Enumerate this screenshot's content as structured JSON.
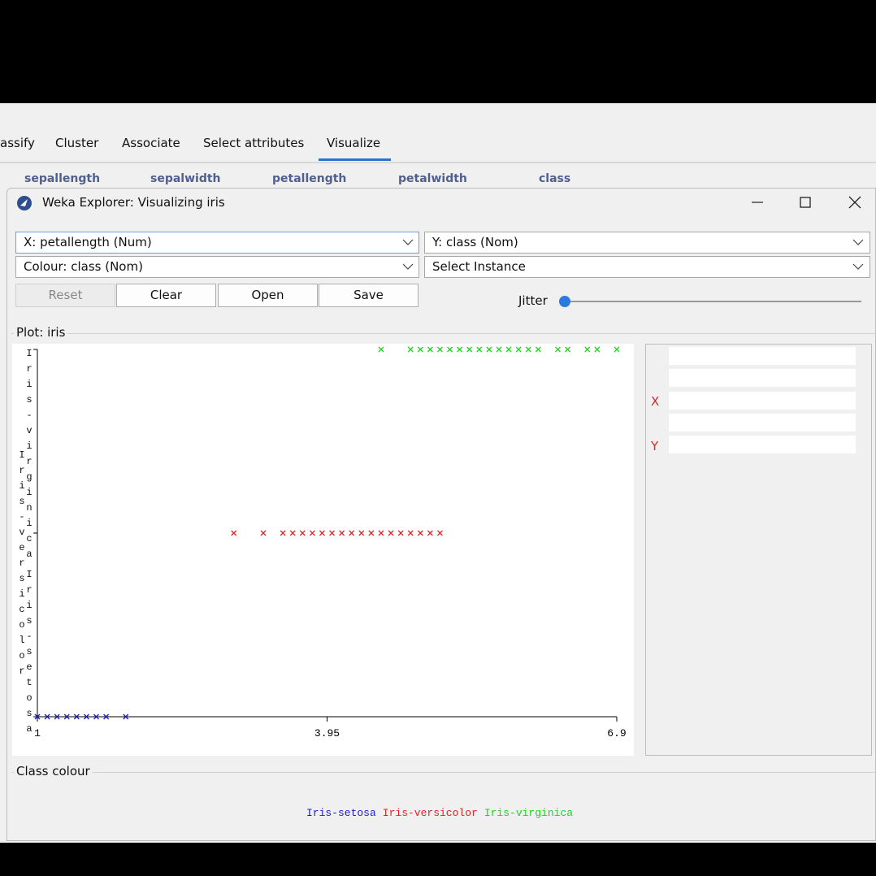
{
  "tabs": [
    "assify",
    "Cluster",
    "Associate",
    "Select attributes",
    "Visualize"
  ],
  "attributes": [
    "sepallength",
    "sepalwidth",
    "petallength",
    "petalwidth",
    "class"
  ],
  "window_title": "Weka Explorer: Visualizing iris",
  "x_select": "X: petallength (Num)",
  "y_select": "Y: class (Nom)",
  "colour_select": "Colour: class (Nom)",
  "instance_select": "Select Instance",
  "buttons": [
    "Reset",
    "Clear",
    "Open",
    "Save"
  ],
  "jitter_label": "Jitter",
  "plot_panel_title": "Plot: iris",
  "matrix_labels": [
    "X",
    "Y"
  ],
  "class_colour_title": "Class colour",
  "chart_data": {
    "type": "scatter",
    "categories": [
      "Iris-setosa",
      "Iris-versicolor",
      "Iris-virginica"
    ],
    "series": [
      {
        "name": "Iris-setosa",
        "color": "#1c1cc4",
        "values": [
          1.0,
          1.1,
          1.2,
          1.3,
          1.4,
          1.5,
          1.6,
          1.7,
          1.9
        ]
      },
      {
        "name": "Iris-versicolor",
        "color": "#e02424",
        "values": [
          3.0,
          3.3,
          3.5,
          3.6,
          3.7,
          3.8,
          3.9,
          4.0,
          4.1,
          4.2,
          4.3,
          4.4,
          4.5,
          4.6,
          4.7,
          4.8,
          4.9,
          5.0,
          5.1
        ]
      },
      {
        "name": "Iris-virginica",
        "color": "#22d022",
        "values": [
          4.5,
          4.8,
          4.9,
          5.0,
          5.1,
          5.2,
          5.3,
          5.4,
          5.5,
          5.6,
          5.7,
          5.8,
          5.9,
          6.0,
          6.1,
          6.3,
          6.4,
          6.6,
          6.7,
          6.9
        ]
      }
    ],
    "xlim": [
      1,
      6.9
    ],
    "xticks": [
      1,
      3.95,
      6.9
    ]
  }
}
